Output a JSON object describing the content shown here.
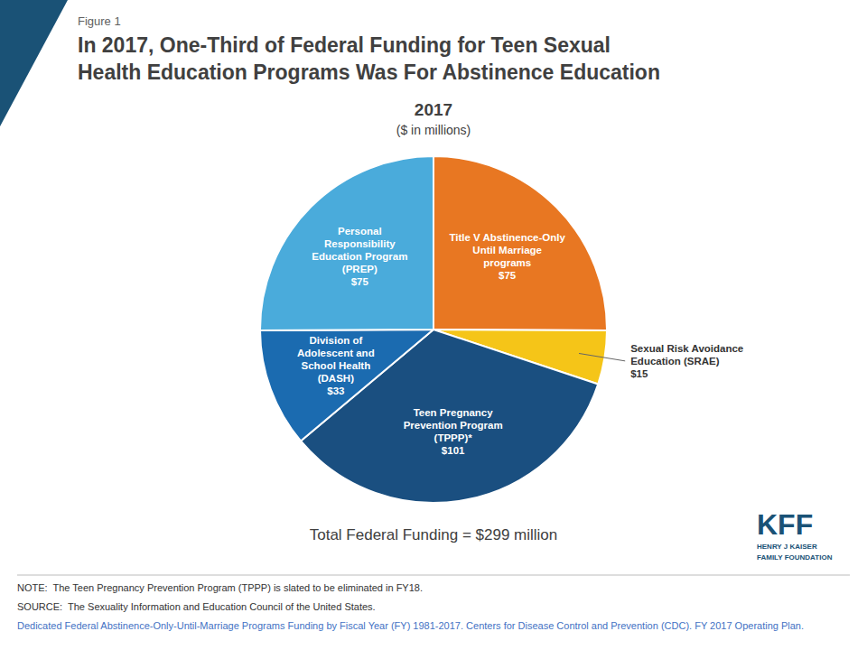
{
  "chart_data": {
    "type": "pie",
    "figure_label": "Figure 1",
    "title": "In 2017, One-Third of Federal Funding for Teen Sexual\nHealth Education Programs Was For Abstinence Education",
    "chart_title": "2017",
    "chart_subtitle": "($ in millions)",
    "categories": [
      "Title V Abstinence-Only\nUntil Marriage\nprograms",
      "Sexual Risk Avoidance\nEducation (SRAE)",
      "Teen Pregnancy\nPrevention Program\n(TPPP)*",
      "Division of\nAdolescent and\nSchool Health\n(DASH)",
      "Personal\nResponsibility\nEducation Program\n(PREP)"
    ],
    "values": [
      75,
      15,
      101,
      33,
      75
    ],
    "value_labels": [
      "$75",
      "$15",
      "$101",
      "$33",
      "$75"
    ],
    "data_labels": true,
    "colors": [
      "#E87722",
      "#F5C518",
      "#1A4F80",
      "#1B6BB0",
      "#4AABDB"
    ],
    "total_label": "Total Federal Funding = $299 million",
    "notes": [
      "NOTE:  The Teen Pregnancy Prevention Program (TPPP) is slated to be eliminated in FY18.",
      "SOURCE:  The Sexuality Information and Education Council of the United States. ",
      "Dedicated Federal Abstinence-Only-Until-Marriage Programs Funding by Fiscal Year (FY) 1981-2017. Centers for Disease Control and Prevention (CDC). FY 2017 Operating Plan."
    ],
    "logo": [
      "KFF",
      "HENRY J KAISER",
      "FAMILY FOUNDATION"
    ]
  }
}
